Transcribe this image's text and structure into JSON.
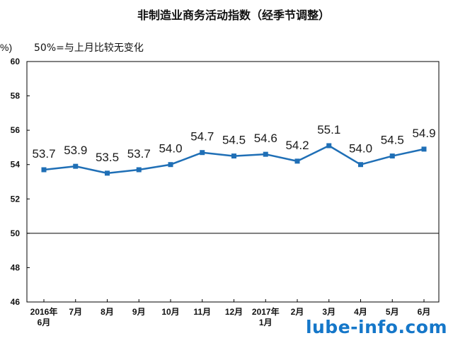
{
  "chart_data": {
    "type": "line",
    "title": "非制造业商务活动指数（经季节调整）",
    "yunit": "%)",
    "annotation": "50%=与上月比较无变化",
    "ylim": [
      46,
      60
    ],
    "yticks": [
      46,
      48,
      50,
      52,
      54,
      56,
      58,
      60
    ],
    "reference_line": 50,
    "categories": [
      "2016年6月",
      "7月",
      "8月",
      "9月",
      "10月",
      "11月",
      "12月",
      "2017年1月",
      "2月",
      "3月",
      "4月",
      "5月",
      "6月"
    ],
    "category_lines": [
      [
        "2016年",
        "6月"
      ],
      [
        "7月"
      ],
      [
        "8月"
      ],
      [
        "9月"
      ],
      [
        "10月"
      ],
      [
        "11月"
      ],
      [
        "12月"
      ],
      [
        "2017年",
        "1月"
      ],
      [
        "2月"
      ],
      [
        "3月"
      ],
      [
        "4月"
      ],
      [
        "5月"
      ],
      [
        "6月"
      ]
    ],
    "series": [
      {
        "values": [
          53.7,
          53.9,
          53.5,
          53.7,
          54.0,
          54.7,
          54.5,
          54.6,
          54.2,
          55.1,
          54.0,
          54.5,
          54.9
        ],
        "color": "#1f6fb6"
      }
    ],
    "data_labels": [
      "53.7",
      "53.9",
      "53.5",
      "53.7",
      "54.0",
      "54.7",
      "54.5",
      "54.6",
      "54.2",
      "55.1",
      "54.0",
      "54.5",
      "54.9"
    ],
    "grid": false
  },
  "watermark": "lube-info.com"
}
